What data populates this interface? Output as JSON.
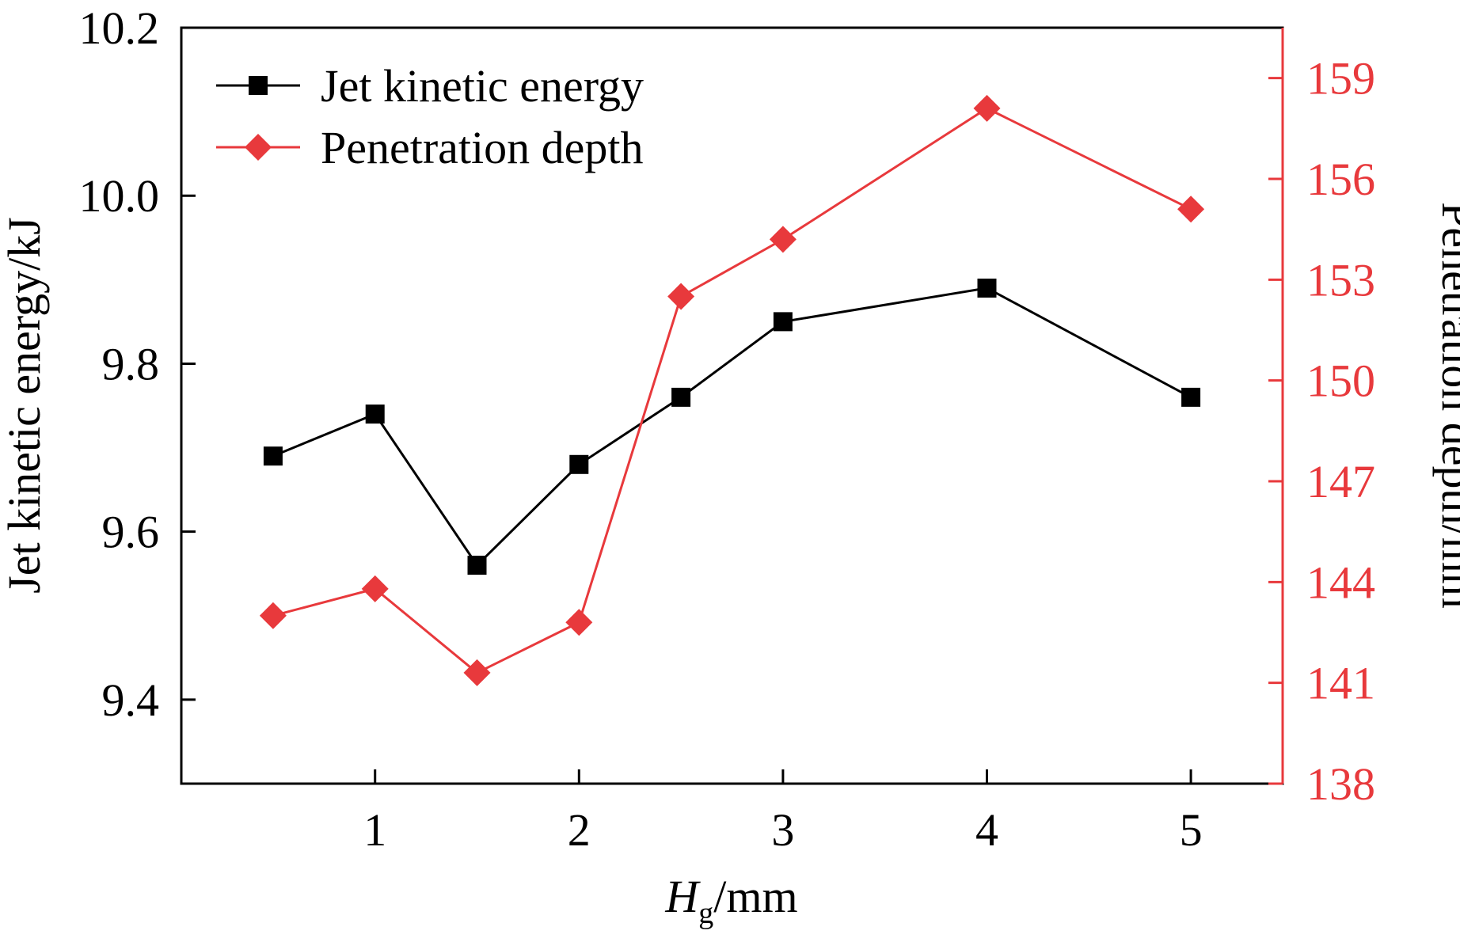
{
  "chart_data": {
    "type": "line",
    "title": "",
    "xlabel": {
      "symbol": "H",
      "subscript": "g",
      "unit": "/mm"
    },
    "x_ticks": [
      1,
      2,
      3,
      4,
      5
    ],
    "xlim": [
      0.05,
      5.45
    ],
    "y_left": {
      "label": "Jet kinetic energy/kJ",
      "lim": [
        9.3,
        10.2
      ],
      "ticks": [
        "9.4",
        "9.6",
        "9.8",
        "10.0",
        "10.2"
      ],
      "color": "#000000"
    },
    "y_right": {
      "label": "Penetration depth/mm",
      "lim": [
        138,
        160.5
      ],
      "ticks": [
        "138",
        "141",
        "144",
        "147",
        "150",
        "153",
        "156",
        "159"
      ],
      "color": "#e8393c"
    },
    "series": [
      {
        "name": "Jet kinetic energy",
        "axis": "left",
        "color": "#000000",
        "marker": "square",
        "x": [
          0.5,
          1,
          1.5,
          2,
          2.5,
          3,
          4,
          5
        ],
        "values": [
          9.69,
          9.74,
          9.56,
          9.68,
          9.76,
          9.85,
          9.89,
          9.76
        ]
      },
      {
        "name": "Penetration depth",
        "axis": "right",
        "color": "#e8393c",
        "marker": "diamond",
        "x": [
          0.5,
          1,
          1.5,
          2,
          2.5,
          3,
          4,
          5
        ],
        "values": [
          143.0,
          143.8,
          141.3,
          142.8,
          152.5,
          154.2,
          158.1,
          155.1
        ]
      }
    ],
    "legend": {
      "position": "top-left",
      "entries": [
        "Jet kinetic energy",
        "Penetration depth"
      ]
    },
    "grid": false
  }
}
